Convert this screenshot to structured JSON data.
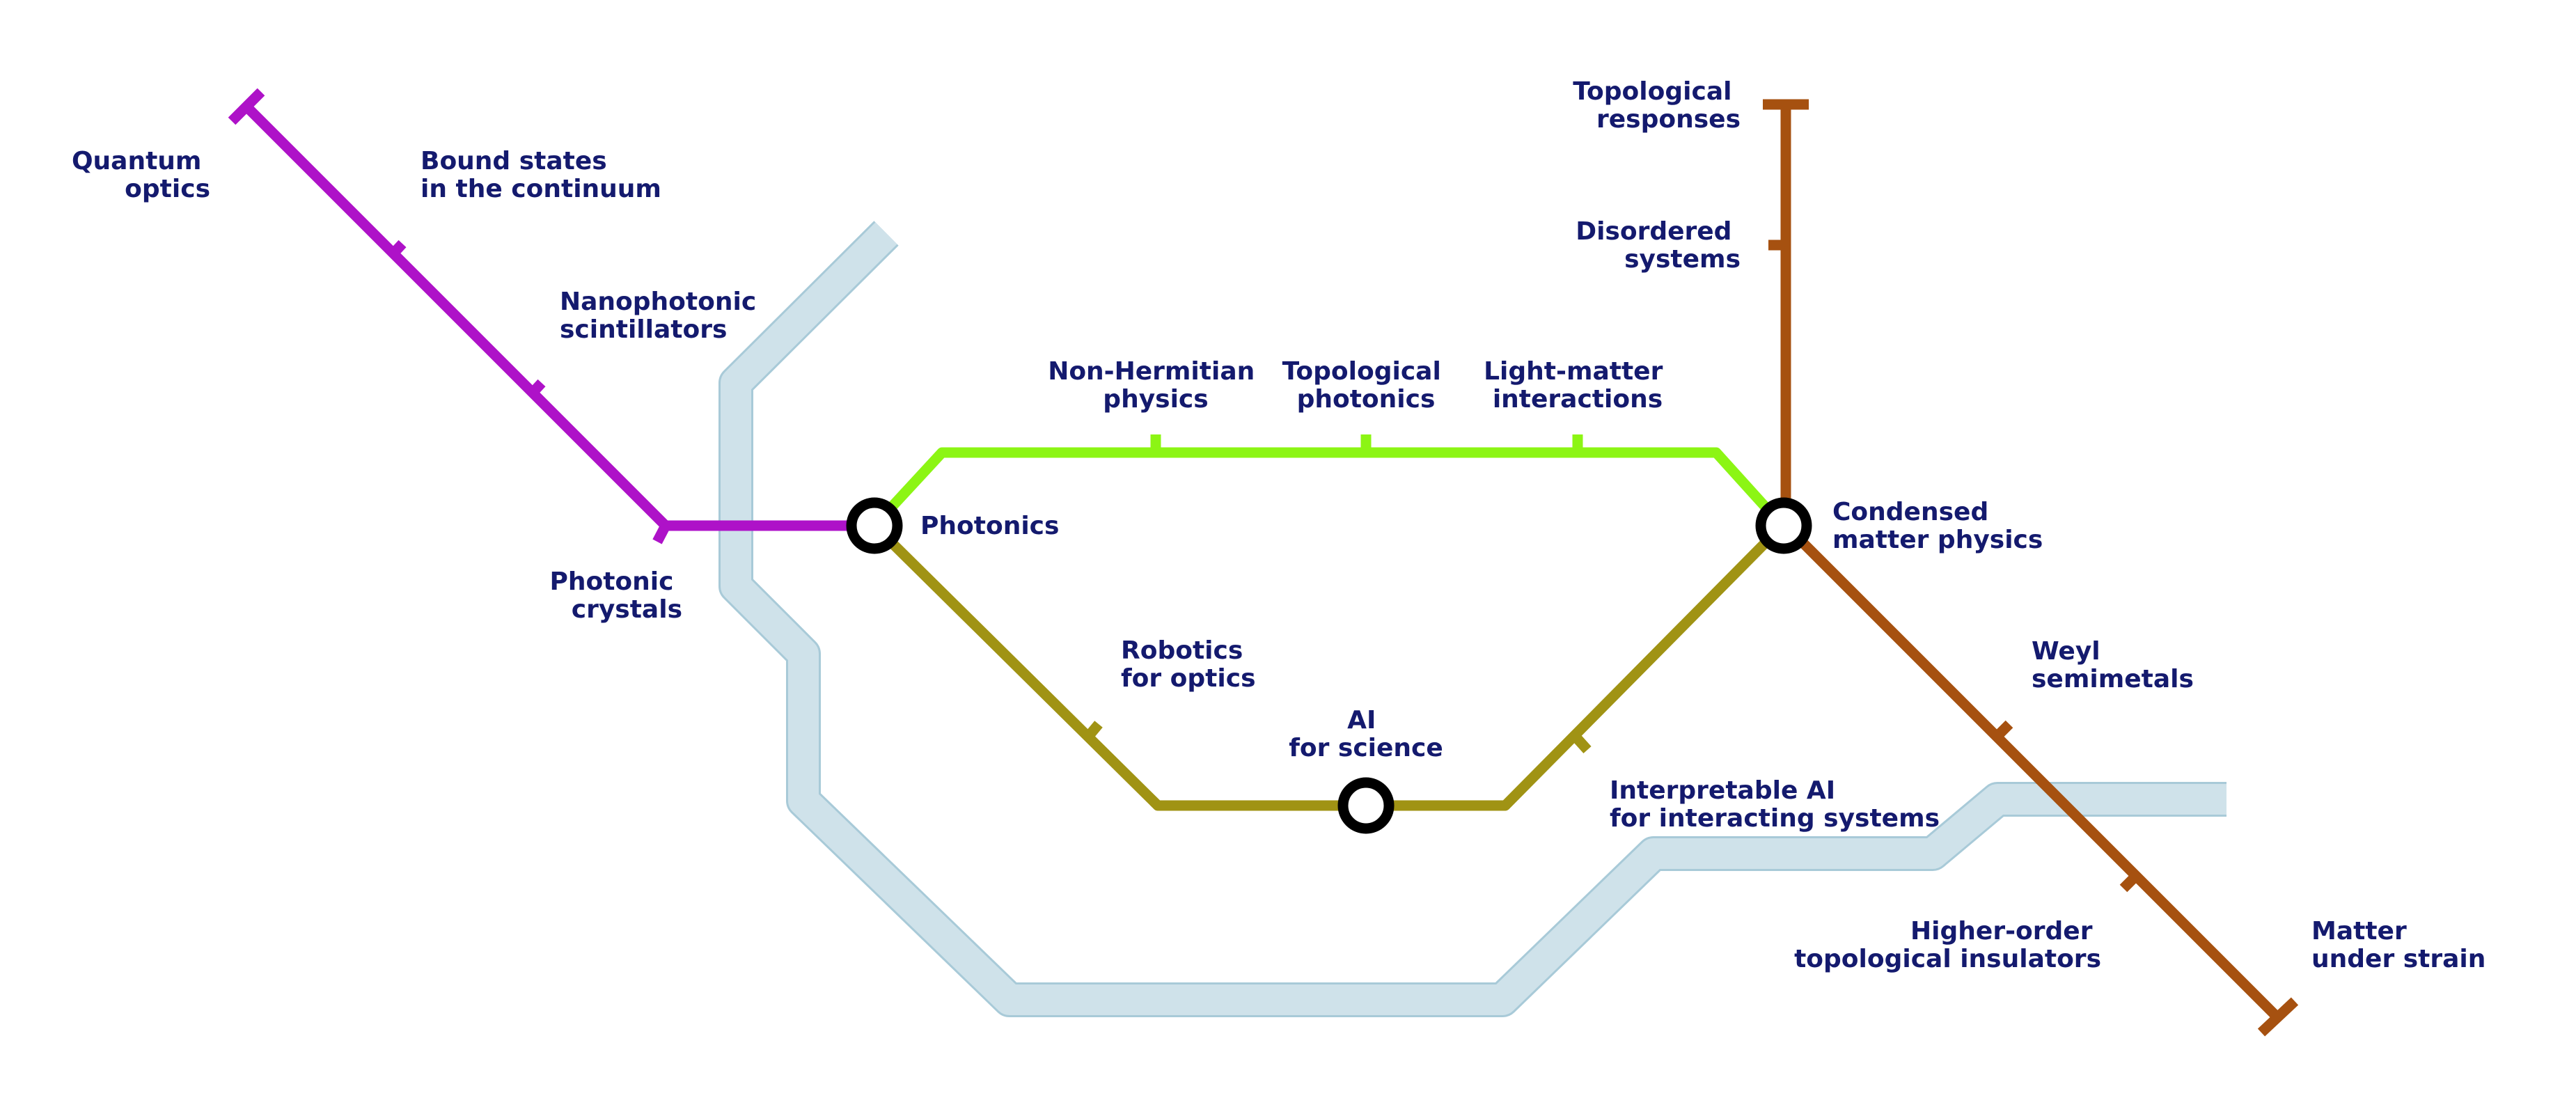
{
  "diagram": {
    "type": "metro-map",
    "colors": {
      "purple_line": "#ae12c8",
      "green_line": "#8cf514",
      "olive_line": "#a09314",
      "brown_line": "#a65110",
      "river_fill": "#cfe2ea",
      "river_stroke": "#a8cad8",
      "label": "#141a6e",
      "hub_ring": "#000000",
      "hub_fill": "#ffffff"
    },
    "lines": [
      {
        "color_key": "purple_line",
        "stations": [
          "Quantum optics",
          "Bound states in the continuum",
          "Nanophotonic scintillators",
          "Photonic crystals",
          "Photonics"
        ]
      },
      {
        "color_key": "green_line",
        "stations": [
          "Photonics",
          "Non-Hermitian physics",
          "Topological photonics",
          "Light-matter interactions",
          "Condensed matter physics"
        ]
      },
      {
        "color_key": "olive_line",
        "stations": [
          "Photonics",
          "Robotics for optics",
          "AI for science",
          "Interpretable AI for interacting systems",
          "Condensed matter physics"
        ]
      },
      {
        "color_key": "brown_line",
        "stations": [
          "Topological responses",
          "Disordered systems",
          "Condensed matter physics",
          "Weyl semimetals",
          "Higher-order topological insulators",
          "Matter under strain"
        ]
      }
    ],
    "stations": {
      "quantum_optics": [
        "Quantum",
        "optics"
      ],
      "bound_states": [
        "Bound states",
        "in the continuum"
      ],
      "nanophotonic": [
        "Nanophotonic",
        "scintillators"
      ],
      "photonic_crystals": [
        "Photonic",
        "crystals"
      ],
      "photonics": [
        "Photonics"
      ],
      "non_hermitian": [
        "Non-Hermitian",
        "physics"
      ],
      "topological_photonics": [
        "Topological",
        "photonics"
      ],
      "light_matter": [
        "Light-matter",
        "interactions"
      ],
      "condensed_matter": [
        "Condensed",
        "matter physics"
      ],
      "robotics": [
        "Robotics",
        "for optics"
      ],
      "ai_science": [
        "AI",
        "for science"
      ],
      "interpretable_ai": [
        "Interpretable AI",
        "for interacting systems"
      ],
      "topological_responses": [
        "Topological",
        "responses"
      ],
      "disordered": [
        "Disordered",
        "systems"
      ],
      "weyl": [
        "Weyl",
        "semimetals"
      ],
      "higher_order": [
        "Higher-order",
        "topological insulators"
      ],
      "matter_strain": [
        "Matter",
        "under strain"
      ]
    }
  }
}
